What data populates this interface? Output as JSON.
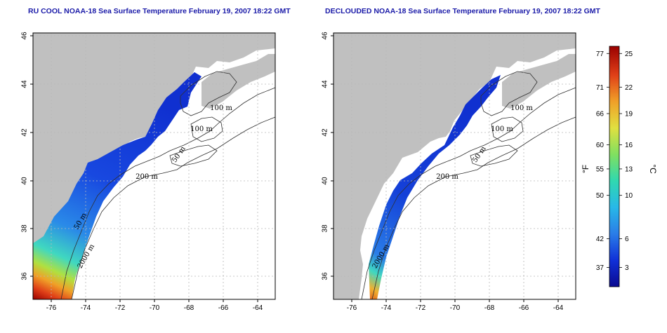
{
  "panels": [
    {
      "title": "RU COOL NOAA-18 Sea Surface Temperature February 19, 2007 18:22 GMT",
      "contour_labels": [
        "100 m",
        "100 m",
        "50 m",
        "200 m",
        "50 m",
        "2000 m"
      ]
    },
    {
      "title": "DECLOUDED NOAA-18 Sea Surface Temperature February 19, 2007 18:22 GMT",
      "contour_labels": [
        "100 m",
        "100 m",
        "50 m",
        "200 m",
        "2000 m"
      ]
    }
  ],
  "axes": {
    "x_ticks": [
      "-76",
      "-74",
      "-72",
      "-70",
      "-68",
      "-66",
      "-64"
    ],
    "y_ticks": [
      "36",
      "38",
      "40",
      "42",
      "44",
      "46"
    ]
  },
  "colorbar": {
    "f_unit": "°F",
    "c_unit": "°C",
    "f_ticks": [
      "77",
      "71",
      "66",
      "60",
      "55",
      "50",
      "42",
      "37"
    ],
    "c_ticks": [
      "25",
      "22",
      "19",
      "16",
      "13",
      "10",
      "6",
      "3"
    ],
    "stops": [
      "#0a0a90",
      "#1030d8",
      "#2a7de8",
      "#28b8e8",
      "#30d8b0",
      "#80e060",
      "#e0e040",
      "#f0a028",
      "#e04018",
      "#9a0000"
    ]
  },
  "colors": {
    "land": "#c0c0c0",
    "ocean": "#ffffff",
    "grid": "#b8b8b8",
    "title": "#1a1aa8"
  }
}
